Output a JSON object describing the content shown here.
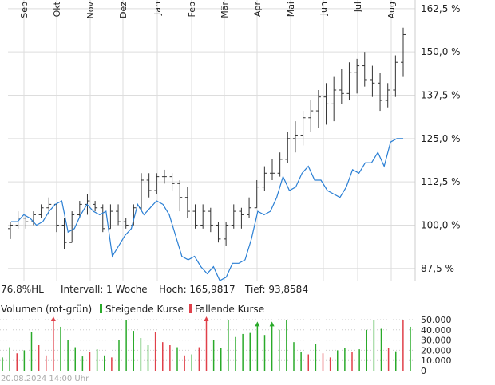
{
  "info": {
    "range": "76,8%HL",
    "interval": "Intervall: 1 Woche",
    "high": "Hoch: 165,9817",
    "low": "Tief: 93,8584"
  },
  "volume_legend": {
    "title": "Volumen (rot-grün)",
    "up_label": "Steigende Kurse",
    "down_label": "Fallende Kurse",
    "up_color": "#2aaa2a",
    "down_color": "#e0404a"
  },
  "timestamp": "20.08.2024 14:00 Uhr",
  "colors": {
    "bars": "#333333",
    "line": "#2a7fd4",
    "grid": "#dddddd"
  },
  "chart_data": {
    "type": "line",
    "months": [
      "Sep",
      "Okt",
      "Nov",
      "Dez",
      "Jan",
      "Feb",
      "Mär",
      "Apr",
      "Mai",
      "Jun",
      "Jul",
      "Aug"
    ],
    "y_ticks": [
      "162,5 %",
      "150,0 %",
      "137,5 %",
      "125,0 %",
      "112,5 %",
      "100,0 %",
      "87,5 %"
    ],
    "y_tick_values": [
      162.5,
      150,
      137.5,
      125,
      112.5,
      100,
      87.5
    ],
    "ylim": [
      84,
      165
    ],
    "weeks": 52,
    "ohlc": [
      [
        99,
        101,
        96,
        100
      ],
      [
        100,
        104,
        99,
        102
      ],
      [
        102,
        103,
        99,
        101
      ],
      [
        101,
        104,
        100,
        103
      ],
      [
        103,
        106,
        102,
        105
      ],
      [
        105,
        108,
        103,
        106
      ],
      [
        106,
        106,
        98,
        100
      ],
      [
        100,
        102,
        93,
        95
      ],
      [
        95,
        104,
        95,
        103
      ],
      [
        103,
        107,
        102,
        106
      ],
      [
        106,
        109,
        103,
        107
      ],
      [
        106,
        107,
        104,
        105
      ],
      [
        105,
        106,
        98,
        99
      ],
      [
        99,
        106,
        99,
        104
      ],
      [
        104,
        106,
        100,
        101
      ],
      [
        101,
        102,
        99,
        100
      ],
      [
        100,
        106,
        100,
        105
      ],
      [
        105,
        115,
        104,
        113
      ],
      [
        113,
        115,
        108,
        110
      ],
      [
        110,
        115,
        109,
        114
      ],
      [
        114,
        116,
        112,
        114
      ],
      [
        114,
        115,
        110,
        112
      ],
      [
        112,
        113,
        104,
        108
      ],
      [
        108,
        111,
        102,
        104
      ],
      [
        104,
        106,
        99,
        100
      ],
      [
        100,
        106,
        99,
        104
      ],
      [
        104,
        105,
        98,
        100
      ],
      [
        100,
        101,
        95,
        96
      ],
      [
        96,
        101,
        94,
        100
      ],
      [
        100,
        106,
        99,
        104
      ],
      [
        104,
        105,
        99,
        103
      ],
      [
        103,
        108,
        102,
        105
      ],
      [
        105,
        113,
        105,
        111
      ],
      [
        111,
        117,
        110,
        115
      ],
      [
        115,
        119,
        113,
        115
      ],
      [
        115,
        121,
        114,
        119
      ],
      [
        119,
        127,
        118,
        125
      ],
      [
        125,
        130,
        121,
        126
      ],
      [
        126,
        133,
        123,
        131
      ],
      [
        131,
        136,
        127,
        133
      ],
      [
        133,
        139,
        128,
        137
      ],
      [
        137,
        141,
        129,
        135
      ],
      [
        135,
        143,
        130,
        139
      ],
      [
        139,
        145,
        135,
        138
      ],
      [
        138,
        147,
        136,
        144
      ],
      [
        144,
        148,
        138,
        146
      ],
      [
        146,
        150,
        140,
        142
      ],
      [
        142,
        146,
        137,
        141
      ],
      [
        141,
        144,
        133,
        136
      ],
      [
        136,
        141,
        134,
        139
      ],
      [
        139,
        149,
        137,
        147
      ],
      [
        147,
        157,
        143,
        155
      ]
    ],
    "line": [
      101,
      101,
      103,
      102,
      100,
      101,
      104,
      106,
      107,
      98,
      99,
      103,
      106,
      104,
      103,
      104,
      91,
      94,
      97,
      99,
      106,
      103,
      105,
      107,
      106,
      103,
      97,
      91,
      90,
      91,
      88,
      86,
      88,
      84,
      85,
      89,
      89,
      90,
      96,
      104,
      103,
      104,
      108,
      114,
      110,
      111,
      115,
      117,
      113,
      113,
      110,
      109,
      108,
      111,
      116,
      115,
      118,
      118,
      121,
      117,
      124,
      125,
      125
    ],
    "volume": {
      "yticks": [
        "50.000",
        "40.000",
        "30.000",
        "20.000",
        "10.000",
        "0"
      ],
      "ytick_values": [
        50000,
        40000,
        30000,
        20000,
        10000,
        0
      ],
      "max": 50000,
      "values": [
        13000,
        23000,
        17000,
        20000,
        38000,
        25000,
        15000,
        50000,
        43000,
        30000,
        23000,
        14000,
        18000,
        21000,
        15000,
        13000,
        30000,
        50000,
        39000,
        32000,
        25000,
        38000,
        28000,
        25000,
        23000,
        15000,
        16000,
        23000,
        50000,
        30000,
        22000,
        50000,
        33000,
        36000,
        37000,
        45000,
        35000,
        45000,
        40000,
        50000,
        28000,
        18000,
        16000,
        26000,
        17000,
        13000,
        20000,
        22000,
        18000,
        21000,
        40000,
        50000,
        41000,
        22000,
        19000,
        50000,
        43000
      ],
      "direction": [
        "up",
        "up",
        "down",
        "up",
        "up",
        "down",
        "down",
        "down",
        "up",
        "up",
        "up",
        "up",
        "down",
        "up",
        "up",
        "down",
        "up",
        "up",
        "up",
        "up",
        "up",
        "down",
        "down",
        "down",
        "up",
        "down",
        "up",
        "down",
        "down",
        "up",
        "up",
        "up",
        "up",
        "up",
        "up",
        "up",
        "up",
        "up",
        "up",
        "up",
        "up",
        "up",
        "down",
        "up",
        "down",
        "down",
        "up",
        "up",
        "down",
        "up",
        "up",
        "up",
        "up",
        "down",
        "up",
        "down",
        "up"
      ],
      "capped": [
        false,
        false,
        false,
        false,
        false,
        false,
        false,
        true,
        false,
        false,
        false,
        false,
        false,
        false,
        false,
        false,
        false,
        false,
        false,
        false,
        false,
        false,
        false,
        false,
        false,
        false,
        false,
        false,
        true,
        false,
        false,
        false,
        false,
        false,
        false,
        true,
        false,
        true,
        false,
        false,
        false,
        false,
        false,
        false,
        false,
        false,
        false,
        false,
        false,
        false,
        false,
        false,
        false,
        false,
        false,
        false,
        false
      ]
    }
  }
}
